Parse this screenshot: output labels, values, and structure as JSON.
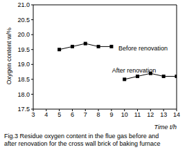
{
  "chart_data": {
    "type": "line",
    "title": "Fig.3 Residue oxygen content in the flue gas before and after renovation for the cross wall brick of baking furnace",
    "x_label": "Time  t/h",
    "y_label": "Oxygen content  w/%",
    "xlim": [
      3,
      14
    ],
    "xticks": [
      3,
      4,
      5,
      6,
      7,
      8,
      9,
      10,
      11,
      12,
      13,
      14
    ],
    "ylim": [
      17.5,
      21.0
    ],
    "yticks": [
      17.5,
      {
        "value": 18,
        "label": "18.0"
      },
      18.5,
      {
        "value": 19,
        "label": "19.0"
      },
      19.5,
      {
        "value": 20,
        "label": "20.0"
      },
      20.5,
      {
        "value": 21,
        "label": "21.0"
      }
    ],
    "grid": false,
    "marker": "square",
    "series": [
      {
        "name": "Before renovation",
        "color": "#000000",
        "x": [
          5,
          6,
          7,
          8,
          9
        ],
        "values": [
          19.5,
          19.6,
          19.7,
          19.6,
          19.6
        ]
      },
      {
        "name": "After renovation",
        "color": "#000000",
        "x": [
          10,
          11,
          12,
          13,
          14
        ],
        "values": [
          18.5,
          18.6,
          18.7,
          18.6,
          18.6
        ]
      }
    ]
  }
}
